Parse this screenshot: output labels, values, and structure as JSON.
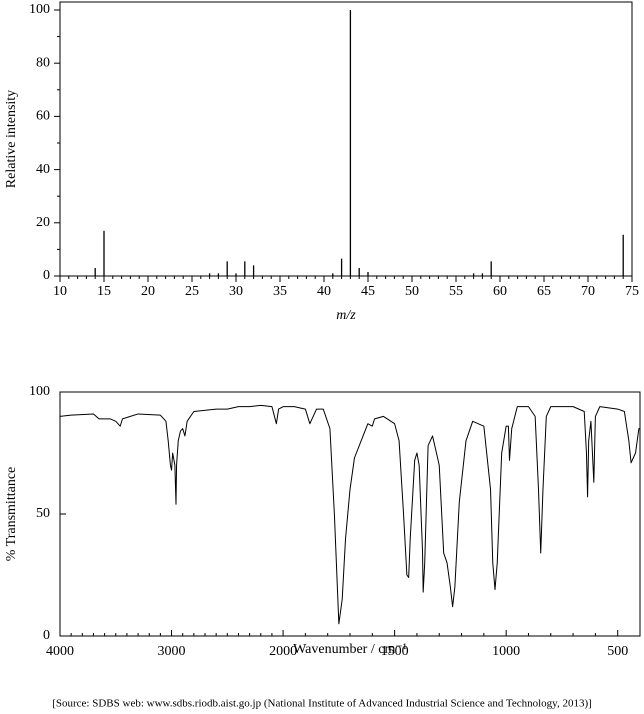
{
  "chart_data": [
    {
      "type": "bar",
      "xlabel": "m/z",
      "ylabel": "Relative intensity",
      "color": "#000000",
      "x": [
        14,
        15,
        27,
        28,
        29,
        30,
        31,
        32,
        41,
        42,
        43,
        44,
        45,
        57,
        58,
        59,
        74
      ],
      "values": [
        3,
        17,
        1,
        1,
        5.5,
        1,
        5.5,
        4,
        1,
        6.5,
        100,
        3,
        1.5,
        1,
        1,
        5.5,
        15.5
      ],
      "xlim": [
        10,
        75
      ],
      "xticks": [
        10,
        15,
        20,
        25,
        30,
        35,
        40,
        45,
        50,
        55,
        60,
        65,
        70,
        75
      ],
      "xminor_step": 1,
      "ylim": [
        0,
        103
      ],
      "yticks": [
        0,
        20,
        40,
        60,
        80,
        100
      ],
      "yminor_step": 10
    },
    {
      "type": "line",
      "xlabel": "Wavenumber / cm⁻¹",
      "ylabel": "% Transmittance",
      "color": "#000000",
      "x_scale_change": 2000,
      "x_scale_factor": 2,
      "x": [
        4000,
        3900,
        3700,
        3650,
        3550,
        3500,
        3460,
        3440,
        3300,
        3100,
        3050,
        3030,
        3010,
        3000,
        2990,
        2970,
        2960,
        2955,
        2940,
        2920,
        2900,
        2880,
        2860,
        2800,
        2600,
        2500,
        2400,
        2300,
        2200,
        2100,
        2060,
        2040,
        2000,
        1950,
        1900,
        1880,
        1850,
        1820,
        1790,
        1770,
        1750,
        1735,
        1720,
        1700,
        1680,
        1650,
        1620,
        1600,
        1590,
        1550,
        1500,
        1480,
        1460,
        1445,
        1437,
        1430,
        1410,
        1400,
        1390,
        1375,
        1372,
        1365,
        1350,
        1330,
        1300,
        1280,
        1265,
        1250,
        1240,
        1230,
        1210,
        1180,
        1150,
        1100,
        1070,
        1060,
        1050,
        1040,
        1020,
        1000,
        990,
        985,
        975,
        950,
        900,
        870,
        855,
        845,
        835,
        820,
        800,
        700,
        650,
        640,
        635,
        630,
        620,
        607,
        600,
        580,
        500,
        470,
        450,
        440,
        420,
        405,
        400
      ],
      "values": [
        90,
        90.5,
        91,
        89,
        89,
        88,
        86,
        89,
        91,
        90.5,
        88,
        80,
        70,
        68,
        75,
        70,
        54,
        70,
        80,
        84,
        85,
        82,
        88,
        92,
        93,
        93,
        94,
        94,
        94.5,
        94,
        87,
        93,
        94,
        94,
        93,
        87,
        93,
        93,
        85,
        50,
        5,
        15,
        40,
        60,
        73,
        80,
        87,
        86,
        89,
        90,
        87,
        80,
        50,
        25,
        24,
        40,
        72,
        75,
        70,
        35,
        18,
        30,
        78,
        82,
        70,
        34,
        30,
        20,
        12,
        20,
        55,
        80,
        88,
        86,
        60,
        30,
        19,
        30,
        75,
        86,
        86,
        72,
        85,
        94,
        94,
        90,
        60,
        34,
        60,
        90,
        94,
        94,
        92,
        75,
        57,
        80,
        88,
        63,
        90,
        94,
        93,
        92,
        80,
        71,
        75,
        85,
        85
      ],
      "xlim": [
        4000,
        400
      ],
      "xticks": [
        4000,
        3000,
        2000,
        1500,
        1000,
        500
      ],
      "xminor_step": 100,
      "ylim": [
        0,
        100
      ],
      "yticks": [
        0,
        50,
        100
      ]
    }
  ],
  "source": "[Source: SDBS web: www.sdbs.riodb.aist.go.jp (National Institute of Advanced Industrial Science and Technology, 2013)]"
}
